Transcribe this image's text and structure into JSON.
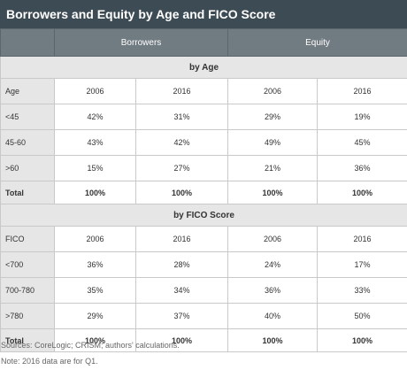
{
  "title": "Borrowers and Equity by Age and FICO Score",
  "groups": {
    "borrowers": "Borrowers",
    "equity": "Equity"
  },
  "sections": {
    "age": {
      "title": "by Age",
      "label": "Age",
      "years": [
        "2006",
        "2016",
        "2006",
        "2016"
      ],
      "rows": [
        {
          "label": "<45",
          "values": [
            "42%",
            "31%",
            "29%",
            "19%"
          ]
        },
        {
          "label": "45-60",
          "values": [
            "43%",
            "42%",
            "49%",
            "45%"
          ]
        },
        {
          "label": ">60",
          "values": [
            "15%",
            "27%",
            "21%",
            "36%"
          ]
        }
      ],
      "total": {
        "label": "Total",
        "values": [
          "100%",
          "100%",
          "100%",
          "100%"
        ]
      }
    },
    "fico": {
      "title": "by FICO Score",
      "label": "FICO",
      "years": [
        "2006",
        "2016",
        "2006",
        "2016"
      ],
      "rows": [
        {
          "label": "<700",
          "values": [
            "36%",
            "28%",
            "24%",
            "17%"
          ]
        },
        {
          "label": "700-780",
          "values": [
            "35%",
            "34%",
            "36%",
            "33%"
          ]
        },
        {
          "label": ">780",
          "values": [
            "29%",
            "37%",
            "40%",
            "50%"
          ]
        }
      ],
      "total": {
        "label": "Total",
        "values": [
          "100%",
          "100%",
          "100%",
          "100%"
        ]
      }
    }
  },
  "notes": {
    "sources": "Sources: CoreLogic; CRISM; authors' calculations.",
    "q1": "Note: 2016 data are for Q1."
  }
}
